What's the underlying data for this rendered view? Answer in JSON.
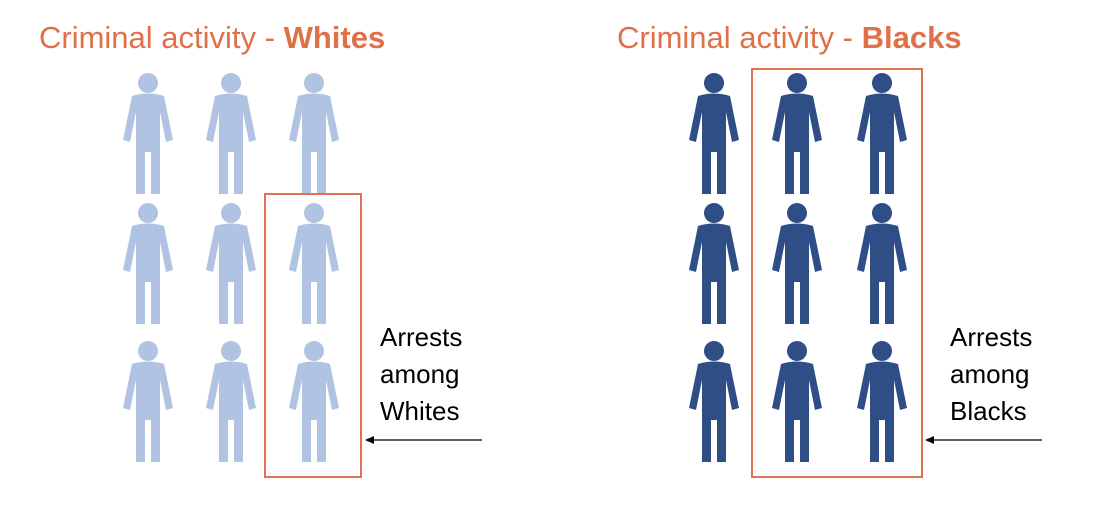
{
  "panels": {
    "whites": {
      "title_prefix": "Criminal activity - ",
      "title_group": "Whites",
      "figure_color": "#b0c3e2",
      "figure_icon": "person-icon",
      "grid": {
        "rows": 3,
        "cols": 3
      },
      "highlighted_figures": 2,
      "label": [
        "Arrests",
        "among",
        "Whites"
      ]
    },
    "blacks": {
      "title_prefix": "Criminal activity - ",
      "title_group": "Blacks",
      "figure_color": "#2f4e86",
      "figure_icon": "person-icon",
      "grid": {
        "rows": 3,
        "cols": 3
      },
      "highlighted_figures": 6,
      "label": [
        "Arrests",
        "among",
        "Blacks"
      ]
    }
  },
  "colors": {
    "title": "#e07048",
    "highlight_box": "#de7350",
    "arrow": "#000000"
  }
}
